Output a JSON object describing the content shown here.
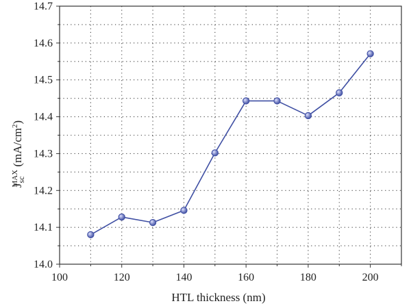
{
  "colors": {
    "series": "#3f4fa3",
    "marker_fill": "#7f89c8",
    "marker_highlight": "#dfe3ff",
    "axis": "#333333",
    "grid": "#444444"
  },
  "chart_data": {
    "type": "line",
    "xlabel": "HTL thickness (nm)",
    "ylabel": {
      "main": "J",
      "subscript": "sc",
      "superscript": "MAX",
      "unit_prefix": " (mA/cm",
      "unit_power": "2",
      "unit_suffix": ")"
    },
    "xlim": [
      100,
      210
    ],
    "ylim": [
      14.0,
      14.7
    ],
    "x_ticks": [
      100,
      120,
      140,
      160,
      180,
      200
    ],
    "x_tick_labels": [
      "100",
      "120",
      "140",
      "160",
      "180",
      "200"
    ],
    "y_ticks": [
      14.0,
      14.1,
      14.2,
      14.3,
      14.4,
      14.5,
      14.6,
      14.7
    ],
    "y_tick_labels": [
      "14.0",
      "14.1",
      "14.2",
      "14.3",
      "14.4",
      "14.5",
      "14.6",
      "14.7"
    ],
    "grid": true,
    "grid_style": "dotted",
    "series": [
      {
        "x": [
          110,
          120,
          130,
          140,
          150,
          160,
          170,
          180,
          190,
          200
        ],
        "values": [
          14.08,
          14.128,
          14.113,
          14.146,
          14.302,
          14.443,
          14.443,
          14.403,
          14.465,
          14.571
        ]
      }
    ]
  }
}
